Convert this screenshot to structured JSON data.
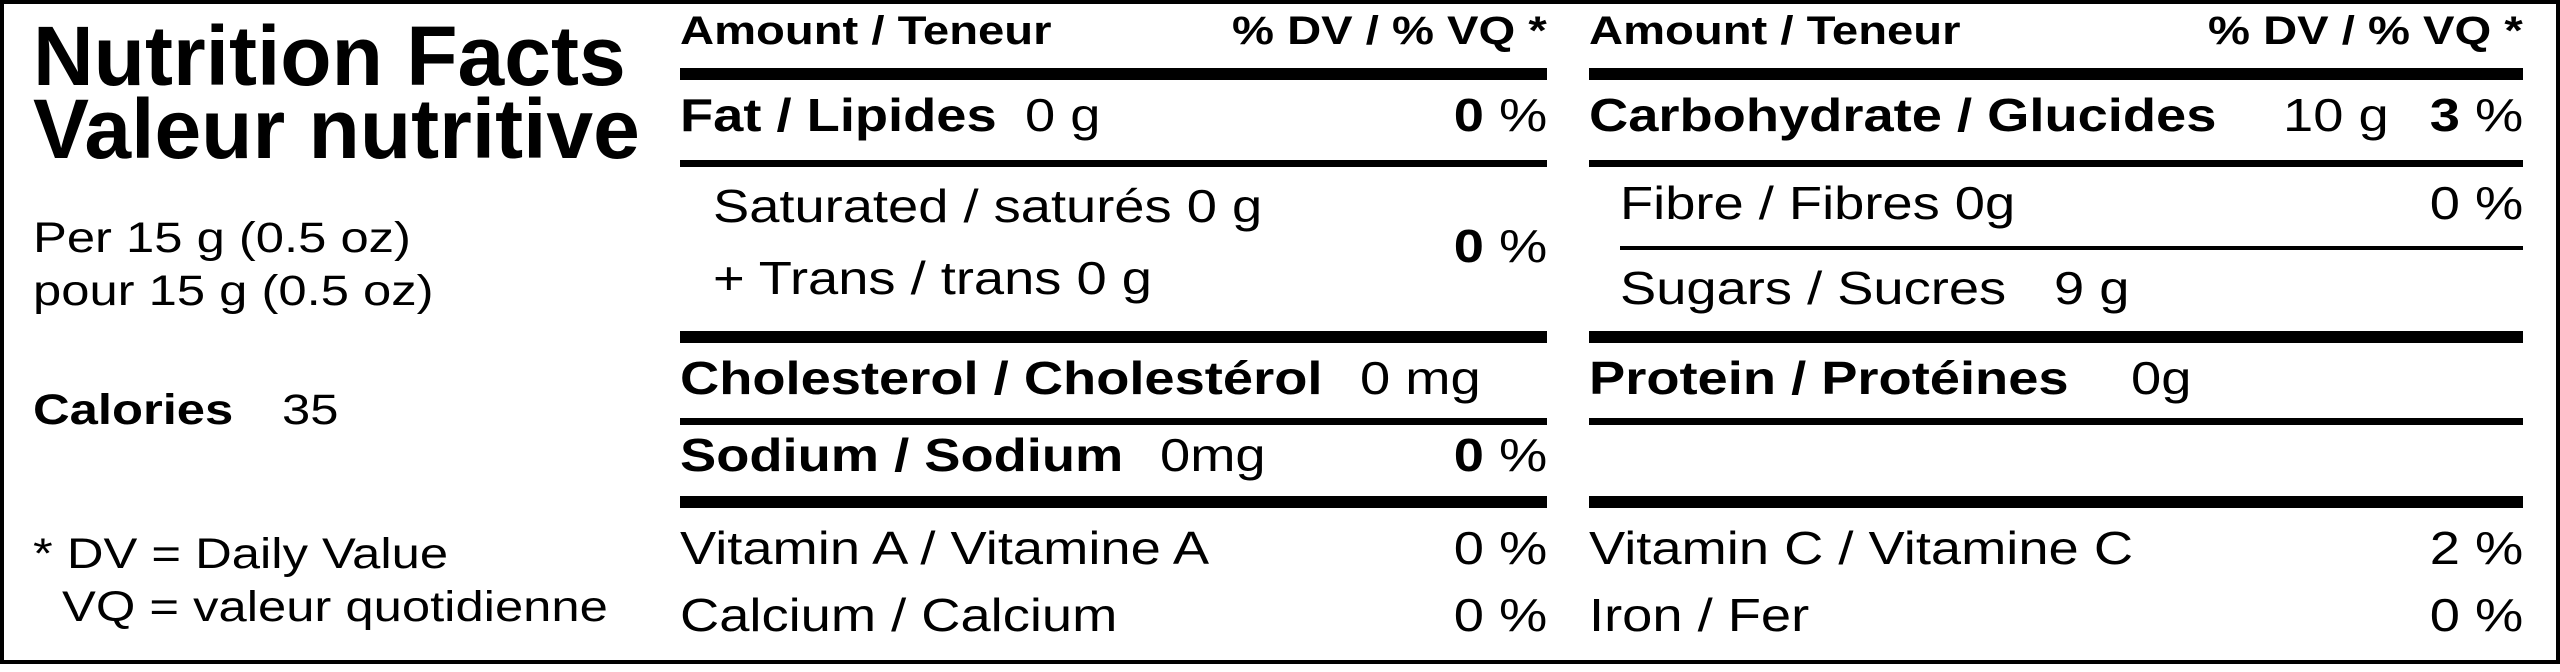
{
  "title": {
    "english": "Nutrition Facts",
    "french": "Valeur nutritive"
  },
  "serving": {
    "english": "Per 15  g  (0.5 oz)",
    "french": "pour 15  g  (0.5 oz)"
  },
  "calories": {
    "label": "Calories",
    "value": "35"
  },
  "footnote": {
    "dv": "* DV = Daily Value",
    "vq": "VQ = valeur quotidienne"
  },
  "header": {
    "amount": "Amount / Teneur",
    "dv": "% DV / % VQ *"
  },
  "left": {
    "fat": {
      "label": "Fat / Lipides",
      "amount": "0 g",
      "dv_value": "0",
      "dv_unit": " %"
    },
    "saturated": {
      "label": "Saturated / saturés 0 g"
    },
    "trans": {
      "label": "+ Trans / trans 0 g"
    },
    "sat_trans_dv": {
      "value": "0",
      "unit": " %"
    },
    "cholesterol": {
      "label": "Cholesterol / Cholestérol",
      "amount": "0 mg"
    },
    "sodium": {
      "label": "Sodium / Sodium",
      "amount": "0mg",
      "dv_value": "0",
      "dv_unit": " %"
    },
    "vitamin_a": {
      "label": "Vitamin A / Vitamine A",
      "dv": "0 %"
    },
    "calcium": {
      "label": "Calcium / Calcium",
      "dv": "0 %"
    }
  },
  "right": {
    "carbohydrate": {
      "label": "Carbohydrate / Glucides",
      "amount": "10 g",
      "dv_value": "3",
      "dv_unit": " %"
    },
    "fibre": {
      "label": "Fibre / Fibres 0g",
      "dv": "0 %"
    },
    "sugars": {
      "label": "Sugars / Sucres",
      "amount": "9 g"
    },
    "protein": {
      "label": "Protein / Protéines",
      "amount": "0g"
    },
    "vitamin_c": {
      "label": "Vitamin C / Vitamine C",
      "dv": "2 %"
    },
    "iron": {
      "label": "Iron / Fer",
      "dv": "0 %"
    }
  }
}
